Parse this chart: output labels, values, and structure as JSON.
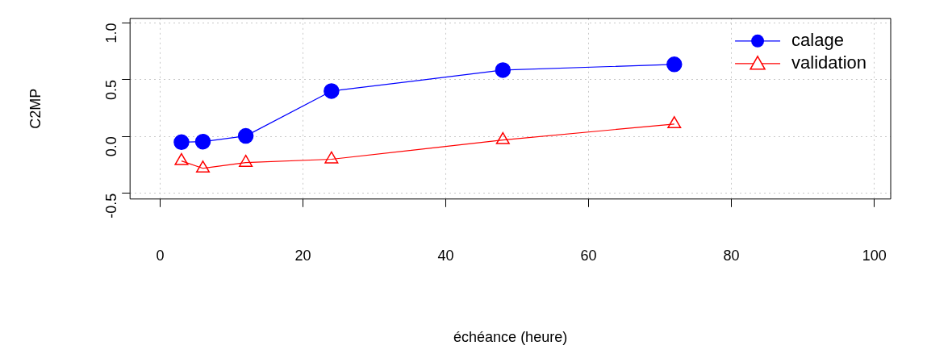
{
  "chart_data": {
    "type": "line",
    "xlabel": "échéance (heure)",
    "ylabel": "C2MP",
    "xlim": [
      -4.2,
      102.3
    ],
    "ylim": [
      -0.55,
      1.04
    ],
    "xticks": [
      0,
      20,
      40,
      60,
      80,
      100
    ],
    "yticks": [
      -0.5,
      {
        "value": 0,
        "label": "0.0"
      },
      0.5,
      {
        "value": 1,
        "label": "1.0"
      }
    ],
    "grid": true,
    "legend": "top right",
    "line_style": "solid",
    "series": [
      {
        "name": "calage",
        "color": "#0000ff",
        "marker": "circle",
        "x": [
          3,
          6,
          12,
          24,
          48,
          72
        ],
        "values": [
          -0.05,
          -0.045,
          0.005,
          0.4,
          0.585,
          0.635
        ]
      },
      {
        "name": "validation",
        "color": "#ff0000",
        "marker": "triangle",
        "x": [
          3,
          6,
          12,
          24,
          48,
          72
        ],
        "values": [
          -0.215,
          -0.28,
          -0.23,
          -0.2,
          -0.03,
          0.11
        ]
      }
    ]
  }
}
